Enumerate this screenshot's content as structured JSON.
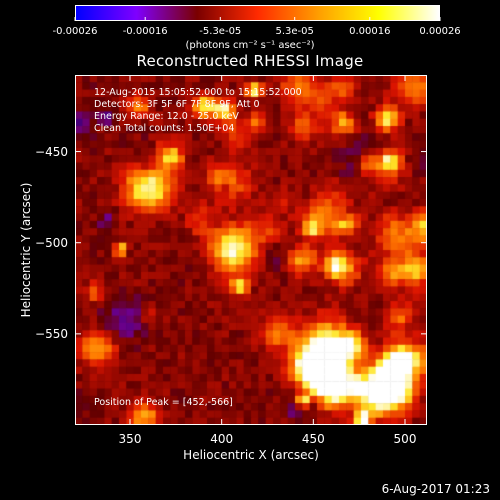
{
  "colorbar": {
    "tick_labels": [
      "-0.00026",
      "-0.00016",
      "-5.3e-05",
      "5.3e-05",
      "0.00016",
      "0.00026"
    ],
    "tick_values": [
      -0.00026,
      -0.00016,
      -5.3e-05,
      5.3e-05,
      0.00016,
      0.00026
    ],
    "units": "(photons cm⁻² s⁻¹ asec⁻²)",
    "colors": [
      "#0000ff",
      "#7f00ff",
      "#7a0000",
      "#ff2a00",
      "#ff9d00",
      "#ffff00",
      "#ffffff"
    ]
  },
  "annotations": {
    "time_range": "12-Aug-2015 15:05:52.000 to 15:15:52.000",
    "detectors": "Detectors: 3F 5F 6F 7F 8F 9F, Att 0",
    "energy": "Energy Range: 12.0 - 25.0 keV",
    "clean": "Clean     Total counts: 1.50E+04",
    "peak": "Position of Peak = [452,-566]"
  },
  "timestamp": "6-Aug-2017 01:23",
  "chart_data": {
    "type": "heatmap",
    "title": "Reconstructed RHESSI Image",
    "xlabel": "Heliocentric X (arcsec)",
    "ylabel": "Heliocentric Y (arcsec)",
    "xlim": [
      320,
      512
    ],
    "ylim": [
      -600,
      -408
    ],
    "xticks": [
      350,
      400,
      450,
      500
    ],
    "yticks": [
      -450,
      -500,
      -550
    ],
    "xtick_labels": [
      "350",
      "400",
      "450",
      "500"
    ],
    "ytick_labels": [
      "−450",
      "−500",
      "−550"
    ],
    "peak": [
      452,
      -566
    ]
  }
}
